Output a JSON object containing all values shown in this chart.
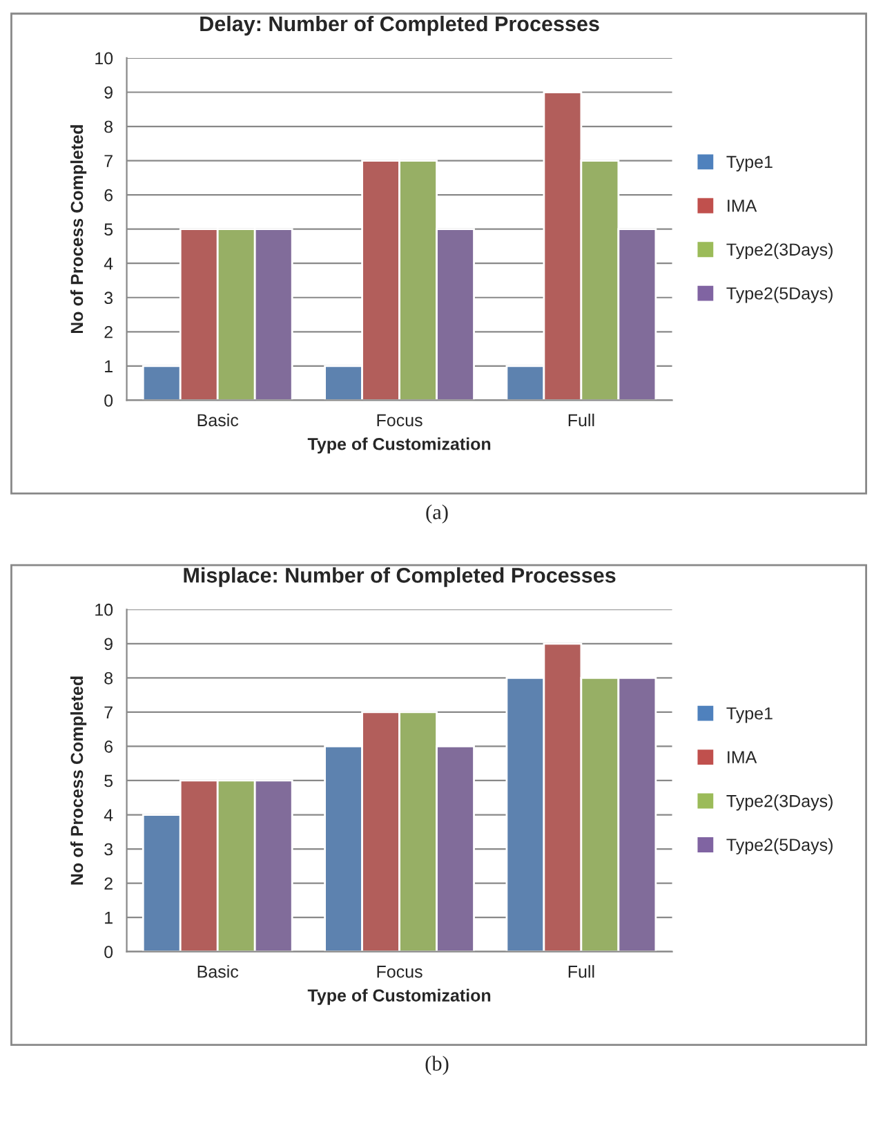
{
  "chart_data": [
    {
      "type": "bar",
      "title": "Delay: Number of Completed Processes",
      "xlabel": "Type of Customization",
      "ylabel": "No of Process Completed",
      "categories": [
        "Basic",
        "Focus",
        "Full"
      ],
      "series": [
        {
          "name": "Type1",
          "color": "#4f81bd",
          "values": [
            1,
            1,
            1
          ]
        },
        {
          "name": "IMA",
          "color": "#c0504d",
          "values": [
            5,
            7,
            9
          ]
        },
        {
          "name": "Type2(3Days)",
          "color": "#9bbb59",
          "values": [
            5,
            7,
            7
          ]
        },
        {
          "name": "Type2(5Days)",
          "color": "#8064a2",
          "values": [
            5,
            5,
            5
          ]
        }
      ],
      "ylim": [
        0,
        10
      ],
      "yticks": [
        0,
        1,
        2,
        3,
        4,
        5,
        6,
        7,
        8,
        9,
        10
      ],
      "grid": "y",
      "legend": "right",
      "annotations": [
        "(a)"
      ]
    },
    {
      "type": "bar",
      "title": "Misplace: Number of Completed Processes",
      "xlabel": "Type of Customization",
      "ylabel": "No of Process Completed",
      "categories": [
        "Basic",
        "Focus",
        "Full"
      ],
      "series": [
        {
          "name": "Type1",
          "color": "#4f81bd",
          "values": [
            4,
            6,
            8
          ]
        },
        {
          "name": "IMA",
          "color": "#c0504d",
          "values": [
            5,
            7,
            9
          ]
        },
        {
          "name": "Type2(3Days)",
          "color": "#9bbb59",
          "values": [
            5,
            7,
            8
          ]
        },
        {
          "name": "Type2(5Days)",
          "color": "#8064a2",
          "values": [
            5,
            6,
            8
          ]
        }
      ],
      "ylim": [
        0,
        10
      ],
      "yticks": [
        0,
        1,
        2,
        3,
        4,
        5,
        6,
        7,
        8,
        9,
        10
      ],
      "grid": "y",
      "legend": "right",
      "annotations": [
        "(b)"
      ]
    }
  ]
}
